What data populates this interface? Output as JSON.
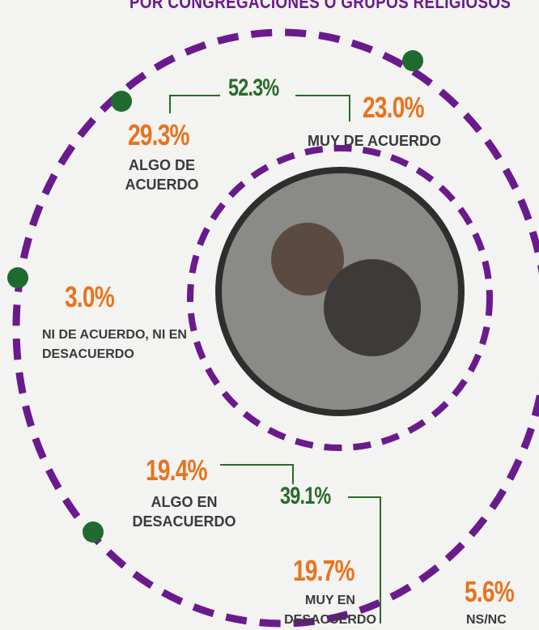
{
  "title": "POR CONGREGACIONES O GRUPOS RELIGIOSOS",
  "agree_total": "52.3%",
  "items": [
    {
      "value": "23.0%",
      "label": "MUY DE ACUERDO"
    },
    {
      "value": "29.3%",
      "label": "ALGO DE ACUERDO"
    },
    {
      "value": "3.0%",
      "label": "NI DE ACUERDO, NI EN DESACUERDO"
    },
    {
      "value": "19.4%",
      "label": "ALGO EN DESACUERDO"
    },
    {
      "value": "19.7%",
      "label": "MUY EN DESACUERDO"
    },
    {
      "value": "5.6%",
      "label": "NS/NC"
    }
  ],
  "disagree_total": "39.1%"
}
